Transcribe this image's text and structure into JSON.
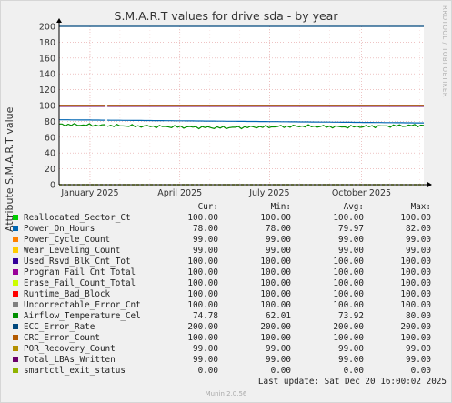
{
  "chart_data": {
    "type": "line",
    "title": "S.M.A.R.T values for drive sda - by year",
    "ylabel": "Attribute S.M.A.R.T value",
    "ylim": [
      0,
      200
    ],
    "y_ticks": [
      "0",
      "20",
      "40",
      "60",
      "80",
      "100",
      "120",
      "140",
      "160",
      "180",
      "200"
    ],
    "x_ticks": [
      "January 2025",
      "April 2025",
      "July 2025",
      "October 2025"
    ],
    "grid": true,
    "watermark": "RRDTOOL / TOBI OETIKER",
    "columns": [
      "Cur:",
      "Min:",
      "Avg:",
      "Max:"
    ],
    "series": [
      {
        "name": "Reallocated_Sector_Ct",
        "color": "#00cc00",
        "cur": "100.00",
        "min": "100.00",
        "avg": "100.00",
        "max": "100.00",
        "values": [
          100,
          100
        ]
      },
      {
        "name": "Power_On_Hours",
        "color": "#0066b3",
        "cur": "78.00",
        "min": "78.00",
        "avg": "79.97",
        "max": "82.00",
        "values": [
          82,
          81,
          80,
          79,
          78
        ]
      },
      {
        "name": "Power_Cycle_Count",
        "color": "#ff8000",
        "cur": "99.00",
        "min": "99.00",
        "avg": "99.00",
        "max": "99.00",
        "values": [
          99,
          99
        ]
      },
      {
        "name": "Wear_Leveling_Count",
        "color": "#ffcc00",
        "cur": "99.00",
        "min": "99.00",
        "avg": "99.00",
        "max": "99.00",
        "values": [
          99,
          99
        ]
      },
      {
        "name": "Used_Rsvd_Blk_Cnt_Tot",
        "color": "#330099",
        "cur": "100.00",
        "min": "100.00",
        "avg": "100.00",
        "max": "100.00",
        "values": [
          100,
          100
        ]
      },
      {
        "name": "Program_Fail_Cnt_Total",
        "color": "#990099",
        "cur": "100.00",
        "min": "100.00",
        "avg": "100.00",
        "max": "100.00",
        "values": [
          100,
          100
        ]
      },
      {
        "name": "Erase_Fail_Count_Total",
        "color": "#ccff00",
        "cur": "100.00",
        "min": "100.00",
        "avg": "100.00",
        "max": "100.00",
        "values": [
          100,
          100
        ]
      },
      {
        "name": "Runtime_Bad_Block",
        "color": "#ff0000",
        "cur": "100.00",
        "min": "100.00",
        "avg": "100.00",
        "max": "100.00",
        "values": [
          100,
          100
        ]
      },
      {
        "name": "Uncorrectable_Error_Cnt",
        "color": "#808080",
        "cur": "100.00",
        "min": "100.00",
        "avg": "100.00",
        "max": "100.00",
        "values": [
          100,
          100
        ]
      },
      {
        "name": "Airflow_Temperature_Cel",
        "color": "#008f00",
        "cur": "74.78",
        "min": "62.01",
        "avg": "73.92",
        "max": "80.00",
        "values": [
          76,
          75,
          74,
          73,
          72,
          73,
          74,
          73,
          74,
          75
        ]
      },
      {
        "name": "ECC_Error_Rate",
        "color": "#00487d",
        "cur": "200.00",
        "min": "200.00",
        "avg": "200.00",
        "max": "200.00",
        "values": [
          200,
          200
        ]
      },
      {
        "name": "CRC_Error_Count",
        "color": "#b35a00",
        "cur": "100.00",
        "min": "100.00",
        "avg": "100.00",
        "max": "100.00",
        "values": [
          100,
          100
        ]
      },
      {
        "name": "POR_Recovery_Count",
        "color": "#b38f00",
        "cur": "99.00",
        "min": "99.00",
        "avg": "99.00",
        "max": "99.00",
        "values": [
          99,
          99
        ]
      },
      {
        "name": "Total_LBAs_Written",
        "color": "#6b006b",
        "cur": "99.00",
        "min": "99.00",
        "avg": "99.00",
        "max": "99.00",
        "values": [
          99,
          99
        ]
      },
      {
        "name": "smartctl_exit_status",
        "color": "#8fb300",
        "cur": "0.00",
        "min": "0.00",
        "avg": "0.00",
        "max": "0.00",
        "values": [
          0,
          0
        ]
      }
    ]
  },
  "footer": {
    "last_update": "Last update: Sat Dec 20 16:00:02 2025",
    "generator": "Munin 2.0.56"
  }
}
